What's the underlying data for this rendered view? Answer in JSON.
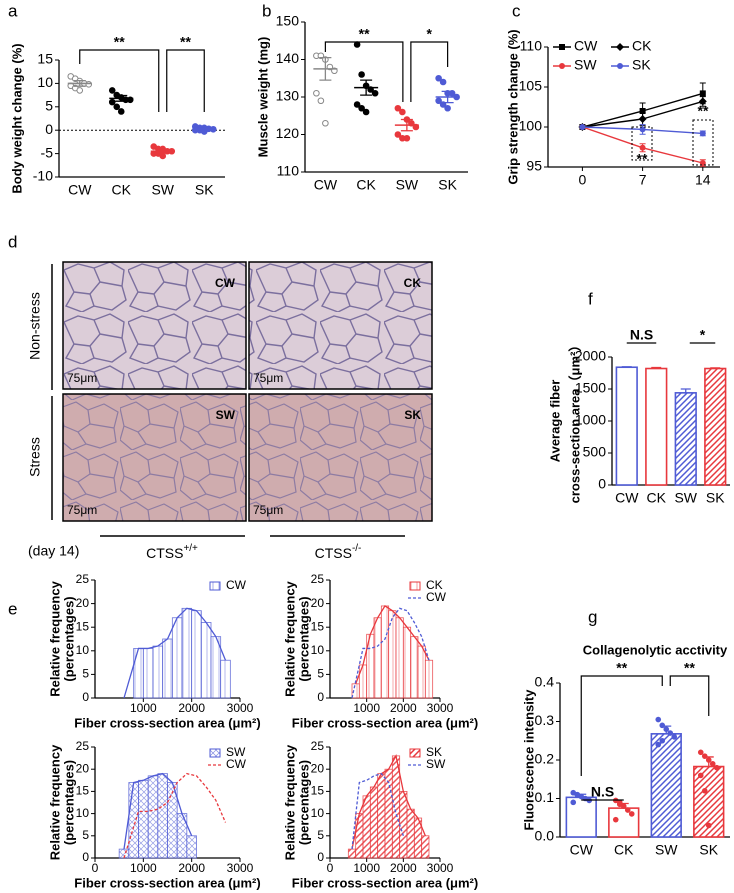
{
  "panel_labels": [
    "a",
    "b",
    "c",
    "d",
    "e",
    "f",
    "g"
  ],
  "micrographs": {
    "labels": [
      "CW",
      "CK",
      "SW",
      "SK"
    ],
    "scale_bar": "75μm",
    "row_labels": [
      "Non-stress",
      "Stress"
    ],
    "day": "(day 14)",
    "genotypes": [
      {
        "name": "CTSS",
        "sup": "+/+"
      },
      {
        "name": "CTSS",
        "sup": "-/-"
      }
    ]
  },
  "chart_data": [
    {
      "type": "dotplot",
      "ylabel": "Body weight change (%)",
      "categories": [
        "CW",
        "CK",
        "SW",
        "SK"
      ],
      "colors": [
        "#888888",
        "#000000",
        "#e8383d",
        "#4f5bd5"
      ],
      "filled": [
        false,
        true,
        true,
        true
      ],
      "values": [
        10,
        6.8,
        -4.5,
        0.2
      ],
      "errors": [
        0.6,
        0.6,
        0.3,
        0.2
      ],
      "points": [
        [
          11.5,
          11,
          10.5,
          10,
          9.8,
          9.5,
          9,
          8.5
        ],
        [
          8.5,
          7.5,
          7,
          6.5,
          6.5,
          6,
          5,
          4
        ],
        [
          -3.5,
          -4,
          -4,
          -4.5,
          -4.5,
          -5,
          -5,
          -5.5
        ],
        [
          0.8,
          0.5,
          0.5,
          0.3,
          0.2,
          0,
          0,
          -0.3
        ]
      ],
      "ylim": [
        -10,
        15
      ],
      "yticks": [
        -10,
        -5,
        0,
        5,
        10,
        15
      ],
      "zero_line": true,
      "annotations": [
        "**",
        "**"
      ]
    },
    {
      "type": "dotplot",
      "ylabel": "Muscle weight (mg)",
      "categories": [
        "CW",
        "CK",
        "SW",
        "SK"
      ],
      "colors": [
        "#888888",
        "#000000",
        "#e8383d",
        "#4f5bd5"
      ],
      "filled": [
        false,
        true,
        true,
        true
      ],
      "values": [
        137.5,
        132.5,
        122.5,
        130
      ],
      "errors": [
        3,
        2,
        1.5,
        1.5
      ],
      "points": [
        [
          141,
          141,
          140,
          138,
          137,
          131,
          129,
          123
        ],
        [
          144,
          136,
          133,
          132,
          131,
          128,
          127,
          126
        ],
        [
          127,
          126,
          124,
          123,
          122,
          120,
          119,
          119
        ],
        [
          135,
          134,
          131,
          131,
          130,
          129,
          128,
          127
        ]
      ],
      "ylim": [
        110,
        150
      ],
      "yticks": [
        110,
        120,
        130,
        140,
        150
      ],
      "annotations": [
        "**",
        "*"
      ]
    },
    {
      "type": "line",
      "ylabel": "Grip strength change (%)",
      "x": [
        0,
        7,
        14
      ],
      "xlim": [
        -4,
        16
      ],
      "xticks": [
        0,
        7,
        14
      ],
      "ylim": [
        95,
        110
      ],
      "yticks": [
        95,
        100,
        105,
        110
      ],
      "series": [
        {
          "name": "CW",
          "color": "#000000",
          "marker": "square",
          "values": [
            100,
            102,
            104.2
          ],
          "errors": [
            0,
            1,
            1.3
          ]
        },
        {
          "name": "CK",
          "color": "#000000",
          "marker": "diamond",
          "values": [
            100,
            101,
            103.2
          ],
          "errors": [
            0,
            0.8,
            0.6
          ]
        },
        {
          "name": "SW",
          "color": "#e8383d",
          "marker": "circle",
          "values": [
            100,
            97.4,
            95.5
          ],
          "errors": [
            0,
            0.5,
            0.4
          ]
        },
        {
          "name": "SK",
          "color": "#4f5bd5",
          "marker": "circle",
          "values": [
            100,
            99.7,
            99.2
          ],
          "errors": [
            0,
            0.6,
            0.3
          ]
        }
      ],
      "annotations": [
        "**",
        "**"
      ]
    },
    {
      "type": "bar",
      "ylabel": [
        "Average fiber",
        "cross-section area（μm²）"
      ],
      "categories": [
        "CW",
        "CK",
        "SW",
        "SK"
      ],
      "colors": [
        "#4f5bd5",
        "#e8383d",
        "#4f5bd5",
        "#e8383d"
      ],
      "hatched": [
        false,
        false,
        true,
        true
      ],
      "values": [
        1840,
        1820,
        1440,
        1820
      ],
      "errors": [
        8,
        15,
        60,
        10
      ],
      "ylim": [
        0,
        2000
      ],
      "yticks": [
        0,
        500,
        1000,
        1500,
        2000
      ],
      "annotations": [
        "N.S",
        "*"
      ]
    },
    {
      "type": "histogram",
      "xlabel": "Fiber cross-section area (μm²)",
      "ylabel": [
        "Relative frequency",
        "(percentages)"
      ],
      "bins": [
        800,
        1000,
        1200,
        1400,
        1600,
        1800,
        2000,
        2200,
        2400,
        2600,
        2800
      ],
      "series": [
        {
          "name": "CW",
          "color": "#4f5bd5",
          "hatch": "vertical",
          "values": [
            10.5,
            10.5,
            11,
            12.5,
            17,
            19,
            18.5,
            16,
            13,
            8
          ]
        }
      ],
      "lines": [
        {
          "color": "#4f5bd5",
          "dashed": false,
          "x": [
            600,
            900,
            1100,
            1300,
            1500,
            1700,
            1900,
            2100,
            2300,
            2500,
            2700
          ],
          "values": [
            0,
            10.5,
            10.5,
            11,
            12.5,
            17,
            19,
            18.5,
            16,
            13,
            8
          ]
        }
      ],
      "xlim": [
        0,
        3000
      ],
      "xticks": [
        1000,
        2000,
        3000
      ],
      "ylim": [
        0,
        25
      ],
      "yticks": [
        0,
        5,
        10,
        15,
        20,
        25
      ]
    },
    {
      "type": "histogram",
      "xlabel": "Fiber cross-section area (μm²)",
      "ylabel": [
        "Relative frequency",
        "(percentages)"
      ],
      "bins": [
        600,
        800,
        1000,
        1200,
        1400,
        1600,
        1800,
        2000,
        2200,
        2400,
        2600,
        2800
      ],
      "series": [
        {
          "name": "CK",
          "color": "#e8383d",
          "hatch": "vertical",
          "values": [
            3,
            7,
            13.5,
            17,
            19.5,
            18.5,
            17,
            15,
            13,
            11,
            8
          ]
        }
      ],
      "lines": [
        {
          "color": "#e8383d",
          "dashed": false,
          "x": [
            700,
            900,
            1100,
            1300,
            1500,
            1700,
            1900,
            2100,
            2300,
            2500,
            2700
          ],
          "values": [
            3,
            7,
            13.5,
            17,
            19.5,
            18.5,
            17,
            15,
            13,
            11,
            8
          ]
        },
        {
          "name": "CW",
          "color": "#4f5bd5",
          "dashed": true,
          "x": [
            600,
            900,
            1100,
            1300,
            1500,
            1700,
            1900,
            2100,
            2300,
            2500,
            2700
          ],
          "values": [
            0,
            10.5,
            10.5,
            11,
            12.5,
            17,
            19,
            18.5,
            16,
            13,
            8
          ]
        }
      ],
      "xlim": [
        0,
        3000
      ],
      "xticks": [
        1000,
        2000,
        3000
      ],
      "ylim": [
        0,
        25
      ],
      "yticks": [
        0,
        5,
        10,
        15,
        20,
        25
      ]
    },
    {
      "type": "histogram",
      "xlabel": "Fiber cross-section area (μm²)",
      "ylabel": [
        "Relative frequency",
        "(percentages)"
      ],
      "bins": [
        500,
        700,
        900,
        1100,
        1300,
        1500,
        1700,
        1900,
        2100
      ],
      "series": [
        {
          "name": "SW",
          "color": "#4f5bd5",
          "hatch": "cross",
          "values": [
            2,
            17,
            17.5,
            18.5,
            19,
            17,
            10,
            5
          ]
        }
      ],
      "lines": [
        {
          "color": "#4f5bd5",
          "dashed": false,
          "x": [
            600,
            800,
            1000,
            1200,
            1400,
            1600,
            1800,
            2000
          ],
          "values": [
            2,
            17,
            17.5,
            18.5,
            19,
            17,
            10,
            5
          ]
        },
        {
          "name": "CW",
          "color": "#e8383d",
          "dashed": true,
          "x": [
            600,
            900,
            1100,
            1300,
            1500,
            1700,
            1900,
            2100,
            2300,
            2500,
            2700
          ],
          "values": [
            0,
            10.5,
            10.5,
            11,
            12.5,
            17,
            19,
            18.5,
            16,
            13,
            8
          ]
        }
      ],
      "xlim": [
        0,
        3000
      ],
      "xticks": [
        0,
        1000,
        2000,
        3000
      ],
      "ylim": [
        0,
        25
      ],
      "yticks": [
        0,
        5,
        10,
        15,
        20,
        25
      ]
    },
    {
      "type": "histogram",
      "xlabel": "Fiber cross-section area (μm²)",
      "ylabel": [
        "Relative frequency",
        "(percentages)"
      ],
      "bins": [
        500,
        700,
        900,
        1100,
        1300,
        1500,
        1700,
        1900,
        2100,
        2300,
        2500,
        2700
      ],
      "series": [
        {
          "name": "SK",
          "color": "#e8383d",
          "hatch": "diagonal",
          "values": [
            2,
            10,
            14,
            16,
            19,
            20,
            23,
            15,
            11,
            9,
            5
          ]
        }
      ],
      "lines": [
        {
          "color": "#e8383d",
          "dashed": false,
          "x": [
            600,
            800,
            1000,
            1200,
            1400,
            1600,
            1800,
            2000,
            2200,
            2400,
            2600
          ],
          "values": [
            2,
            10,
            14,
            16,
            19,
            20,
            23,
            15,
            11,
            9,
            5
          ]
        },
        {
          "name": "SW",
          "color": "#4f5bd5",
          "dashed": true,
          "x": [
            600,
            800,
            1000,
            1200,
            1400,
            1600,
            1800,
            2000
          ],
          "values": [
            2,
            17,
            17.5,
            18.5,
            19,
            17,
            10,
            5
          ]
        }
      ],
      "xlim": [
        0,
        3000
      ],
      "xticks": [
        0,
        1000,
        2000,
        3000
      ],
      "ylim": [
        0,
        25
      ],
      "yticks": [
        0,
        5,
        10,
        15,
        20,
        25
      ]
    },
    {
      "type": "bar",
      "title": "Collagenolytic acctivity",
      "ylabel": "Fluorescence intensity",
      "categories": [
        "CW",
        "CK",
        "SW",
        "SK"
      ],
      "colors": [
        "#4f5bd5",
        "#e8383d",
        "#4f5bd5",
        "#e8383d"
      ],
      "hatched": [
        false,
        false,
        true,
        true
      ],
      "values": [
        0.103,
        0.075,
        0.268,
        0.183
      ],
      "errors": [
        0.008,
        0.012,
        0.02,
        0.025
      ],
      "points": [
        [
          0.115,
          0.11,
          0.105,
          0.1,
          0.095,
          0.09,
          0.11
        ],
        [
          0.095,
          0.085,
          0.08,
          0.07,
          0.06,
          0.045,
          0.09
        ],
        [
          0.305,
          0.29,
          0.28,
          0.27,
          0.26,
          0.24,
          0.25
        ],
        [
          0.22,
          0.21,
          0.2,
          0.19,
          0.18,
          0.16,
          0.12,
          0.03
        ]
      ],
      "ylim": [
        0,
        0.4
      ],
      "yticks": [
        {
          "value": 0,
          "label": "0.0"
        },
        0.1,
        0.2,
        0.3,
        0.4
      ],
      "annotations": [
        "**",
        "N.S",
        "**"
      ]
    }
  ]
}
